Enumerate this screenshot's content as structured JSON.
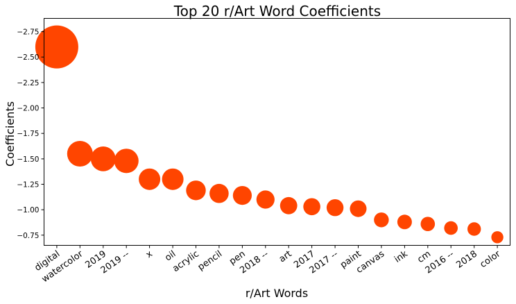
{
  "chart_data": {
    "type": "scatter",
    "title": "Top 20 r/Art Word Coefficients",
    "xlabel": "r/Art Words",
    "ylabel": "Coefficients",
    "categories": [
      "digital",
      "watercolor",
      "2019",
      "2019 --",
      "x",
      "oil",
      "acrylic",
      "pencil",
      "pen",
      "2018 --",
      "art",
      "2017",
      "2017 --",
      "paint",
      "canvas",
      "ink",
      "cm",
      "2016 --",
      "2018",
      "color"
    ],
    "values": [
      -2.6,
      -1.55,
      -1.5,
      -1.48,
      -1.3,
      -1.3,
      -1.19,
      -1.16,
      -1.14,
      -1.1,
      -1.04,
      -1.03,
      -1.02,
      -1.01,
      -0.9,
      -0.88,
      -0.86,
      -0.82,
      -0.81,
      -0.73
    ],
    "y_ticks": [
      -2.75,
      -2.5,
      -2.25,
      -2.0,
      -1.75,
      -1.5,
      -1.25,
      -1.0,
      -0.75
    ],
    "y_tick_labels": [
      "−2.75",
      "−2.50",
      "−2.25",
      "−2.00",
      "−1.75",
      "−1.50",
      "−1.25",
      "−1.00",
      "−0.75"
    ],
    "ylim": [
      -2.88,
      -0.65
    ],
    "y_inverted": true,
    "marker_size": "proportional to |coefficient|",
    "color": "#ff4500",
    "grid": false,
    "legend": "none"
  }
}
